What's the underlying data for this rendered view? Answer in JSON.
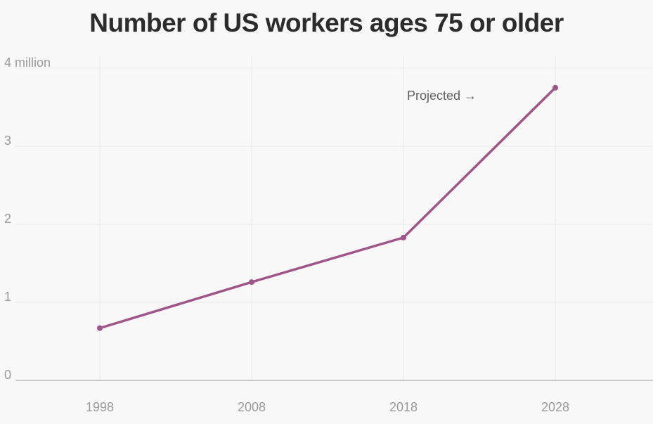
{
  "chart_data": {
    "type": "line",
    "title": "Number of US workers ages 75 or older",
    "x": [
      "1998",
      "2008",
      "2018",
      "2028"
    ],
    "series": [
      {
        "values": [
          0.67,
          1.26,
          1.83,
          3.75
        ]
      }
    ],
    "xlabel": "",
    "ylabel": "",
    "ylim": [
      0,
      4
    ],
    "yticks": [
      0,
      1,
      2,
      3,
      4
    ],
    "ytick_labels": [
      "0",
      "1",
      "2",
      "3",
      "4 million"
    ],
    "annotations": [
      {
        "text": "Projected →",
        "x": "2018",
        "y": 3.65
      }
    ],
    "grid": true,
    "colors": {
      "line": "#a05588",
      "grid": "#e9e9e9",
      "axis": "#9a9a9a",
      "background": "#f8f8f8"
    }
  }
}
